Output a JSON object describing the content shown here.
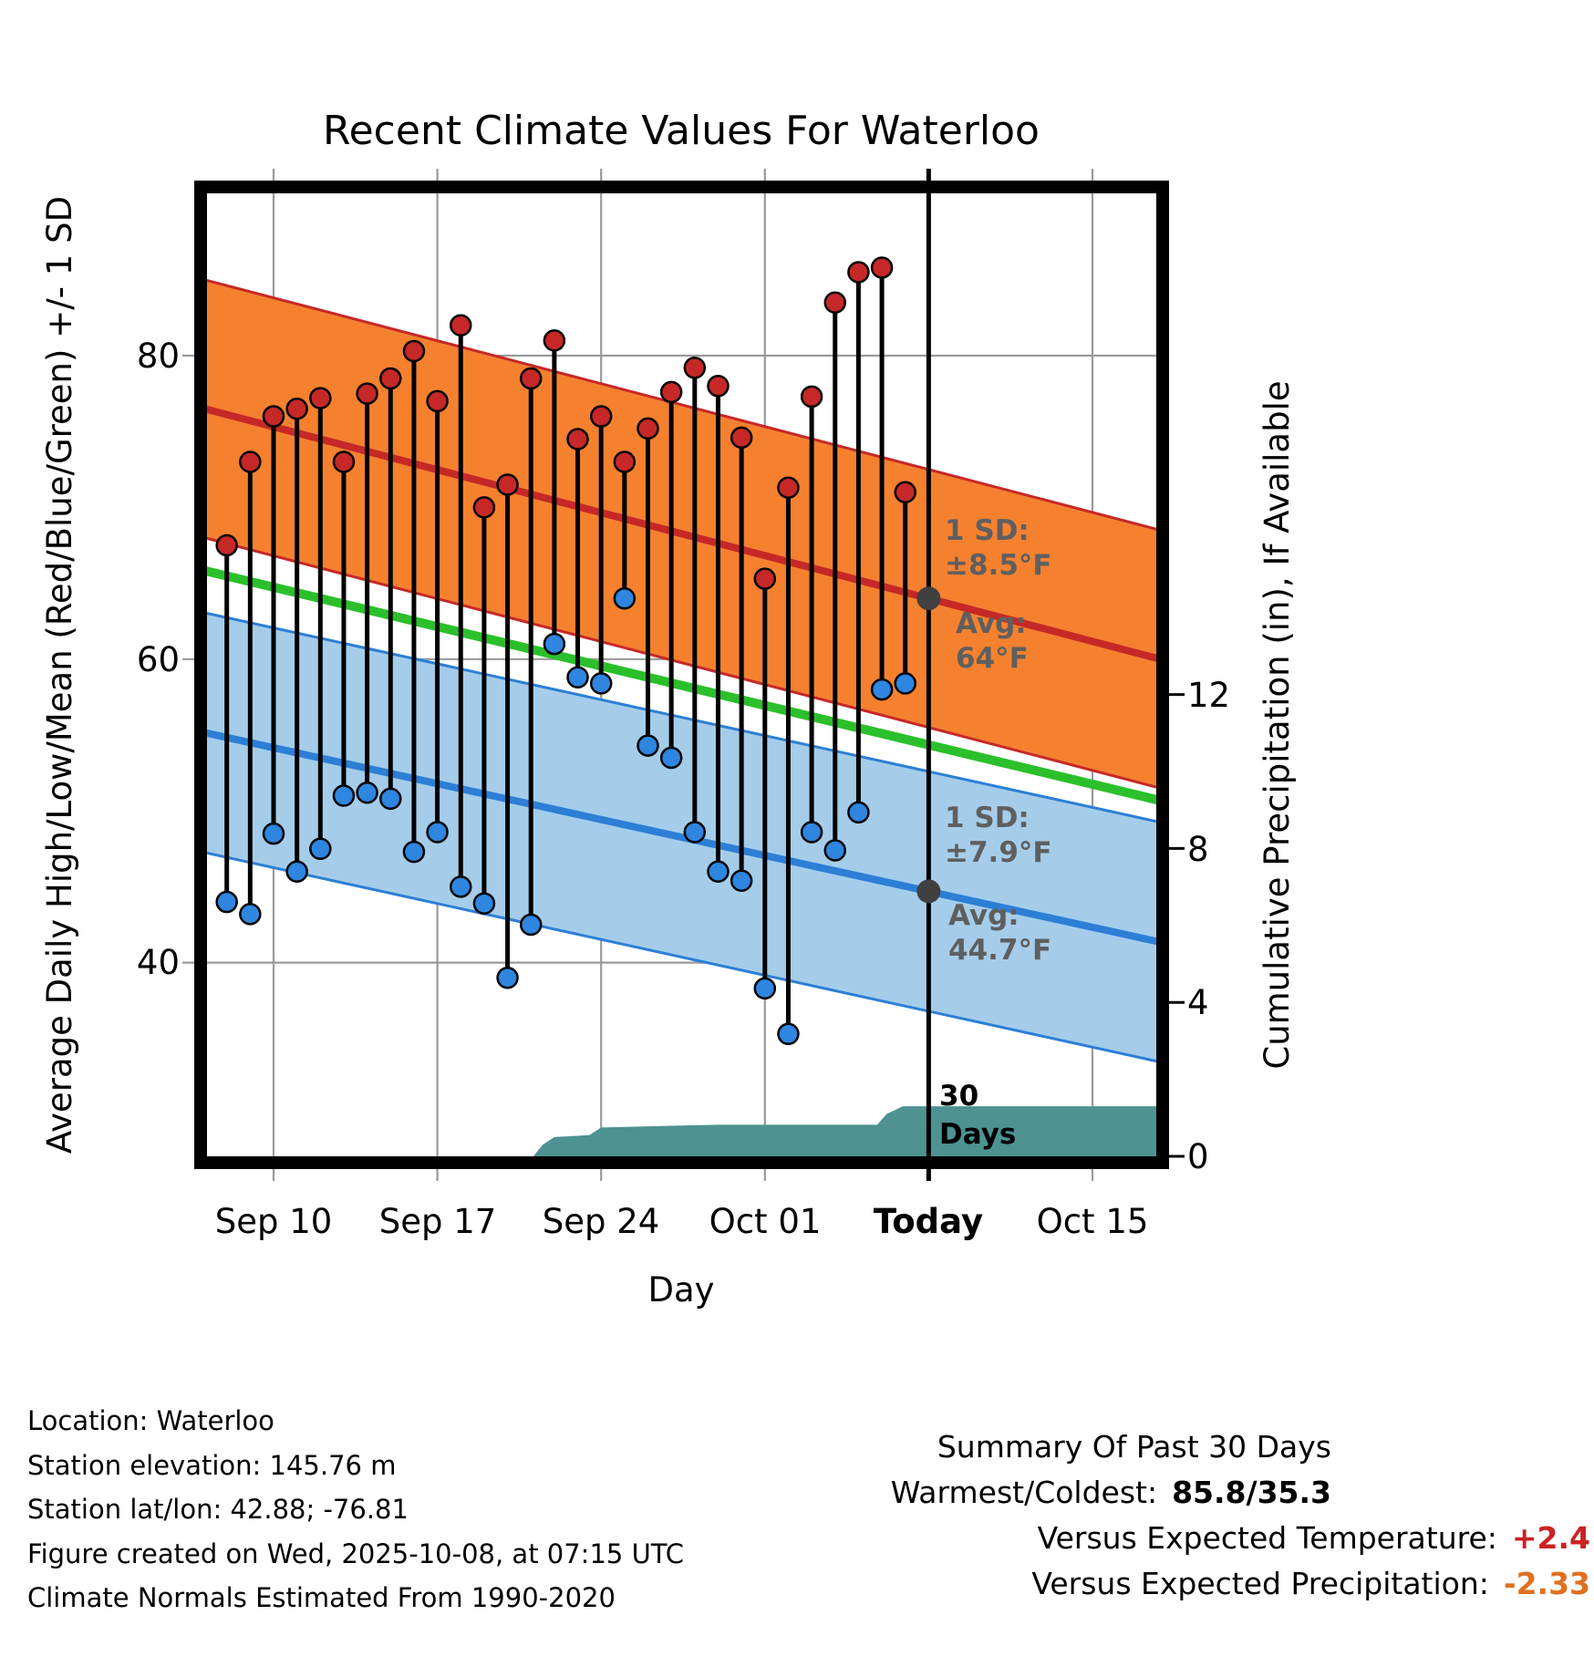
{
  "title": "Recent Climate Values For Waterloo",
  "axes": {
    "left_label": "Average Daily High/Low/Mean (Red/Blue/Green) +/- 1 SD",
    "right_label": "Cumulative Precipitation (in), If Available",
    "x_label": "Day",
    "x_ticks": [
      {
        "label": "Sep 10",
        "d": 0
      },
      {
        "label": "Sep 17",
        "d": 7
      },
      {
        "label": "Sep 24",
        "d": 14
      },
      {
        "label": "Oct 01",
        "d": 21
      },
      {
        "label": "Today",
        "d": 28,
        "bold": true
      },
      {
        "label": "Oct 15",
        "d": 35
      }
    ],
    "left_ticks": [
      {
        "label": "80",
        "t": 80
      },
      {
        "label": "60",
        "t": 60
      },
      {
        "label": "40",
        "t": 40
      }
    ],
    "right_ticks": [
      {
        "label": "12",
        "p": 12
      },
      {
        "label": "8",
        "p": 8
      },
      {
        "label": "4",
        "p": 4
      },
      {
        "label": "0",
        "p": 0
      }
    ]
  },
  "annotations": {
    "high_sd_title": "1 SD:",
    "high_sd_value": "±8.5°F",
    "high_avg_title": "Avg:",
    "high_avg_value": "64°F",
    "low_sd_title": "1 SD:",
    "low_sd_value": "±7.9°F",
    "low_avg_title": "Avg:",
    "low_avg_value": "44.7°F",
    "precip_days_line1": "30",
    "precip_days_line2": "Days"
  },
  "footer": {
    "left_lines": [
      "Location: Waterloo",
      "Station elevation: 145.76 m",
      "Station lat/lon: 42.88; -76.81",
      "Figure created on Wed, 2025-10-08, at 07:15 UTC",
      "Climate Normals Estimated From 1990-2020"
    ],
    "summary": {
      "title": "Summary Of Past 30 Days",
      "warmest_label": "Warmest/Coldest:",
      "warmest_value": "85.8/35.3",
      "vs_temp_label": "Versus Expected Temperature:",
      "vs_temp_value": "+2.4",
      "vs_precip_label": "Versus Expected Precipitation:",
      "vs_precip_value": "-2.33"
    }
  },
  "colors": {
    "high_band": "#F5812F",
    "high_line": "#C62828",
    "low_band": "#A5CDEA",
    "low_line": "#2C7FD6",
    "mean_line": "#2BC02B",
    "precip_fill": "#4E9292",
    "high_dot": "#C62828",
    "low_dot": "#2E86E0",
    "stem": "#000000",
    "grid": "#9A9A9A",
    "today_line": "#000000",
    "today_marker": "#404040",
    "annotation_gray": "#5F5F5F",
    "vs_temp_color": "#CC2222",
    "vs_precip_color": "#E07020"
  },
  "chart_data": {
    "type": "line",
    "title": "Recent Climate Values For Waterloo",
    "x_axis": {
      "unit": "days since Sep 10",
      "range": [
        -3.12,
        38.0
      ],
      "tick_days": [
        0,
        7,
        14,
        21,
        28,
        35
      ]
    },
    "temp_axis": {
      "label": "Average Daily High/Low/Mean (Red/Blue/Green) +/- 1 SD",
      "ticks": [
        40,
        60,
        80
      ],
      "range_f": [
        27,
        91
      ]
    },
    "precip_axis": {
      "label": "Cumulative Precipitation (in), If Available",
      "ticks": [
        0,
        4,
        8,
        12
      ],
      "range_in": [
        0,
        25.2
      ]
    },
    "normals": {
      "high": {
        "value_at_d0": 75.31,
        "slope_per_day": -0.404,
        "sd": 8.5,
        "today_value": 64.0
      },
      "low": {
        "value_at_d0": 54.16,
        "slope_per_day": -0.338,
        "sd": 7.9,
        "today_value": 44.7
      },
      "mean": {
        "value_at_d0": 64.74,
        "slope_per_day": -0.371
      }
    },
    "today_d": 28,
    "daily_high_low": [
      {
        "d": -2,
        "high": 67.5,
        "low": 44.0
      },
      {
        "d": -1,
        "high": 73.0,
        "low": 43.2
      },
      {
        "d": 0,
        "high": 76.0,
        "low": 48.5
      },
      {
        "d": 1,
        "high": 76.5,
        "low": 46.0
      },
      {
        "d": 2,
        "high": 77.2,
        "low": 47.5
      },
      {
        "d": 3,
        "high": 73.0,
        "low": 51.0
      },
      {
        "d": 4,
        "high": 77.5,
        "low": 51.2
      },
      {
        "d": 5,
        "high": 78.5,
        "low": 50.8
      },
      {
        "d": 6,
        "high": 80.3,
        "low": 47.3
      },
      {
        "d": 7,
        "high": 77.0,
        "low": 48.6
      },
      {
        "d": 8,
        "high": 82.0,
        "low": 45.0
      },
      {
        "d": 9,
        "high": 70.0,
        "low": 43.9
      },
      {
        "d": 10,
        "high": 71.5,
        "low": 39.0
      },
      {
        "d": 11,
        "high": 78.5,
        "low": 42.5
      },
      {
        "d": 12,
        "high": 81.0,
        "low": 61.0
      },
      {
        "d": 13,
        "high": 74.5,
        "low": 58.8
      },
      {
        "d": 14,
        "high": 76.0,
        "low": 58.4
      },
      {
        "d": 15,
        "high": 73.0,
        "low": 64.0
      },
      {
        "d": 16,
        "high": 75.2,
        "low": 54.3
      },
      {
        "d": 17,
        "high": 77.6,
        "low": 53.5
      },
      {
        "d": 18,
        "high": 79.2,
        "low": 48.6
      },
      {
        "d": 19,
        "high": 78.0,
        "low": 46.0
      },
      {
        "d": 20,
        "high": 74.6,
        "low": 45.4
      },
      {
        "d": 21,
        "high": 65.3,
        "low": 38.3
      },
      {
        "d": 22,
        "high": 71.3,
        "low": 35.3
      },
      {
        "d": 23,
        "high": 77.3,
        "low": 48.6
      },
      {
        "d": 24,
        "high": 83.5,
        "low": 47.4
      },
      {
        "d": 25,
        "high": 85.5,
        "low": 49.9
      },
      {
        "d": 26,
        "high": 85.8,
        "low": 58.0
      },
      {
        "d": 27,
        "high": 71.0,
        "low": 58.4
      }
    ],
    "cumulative_precip_in": [
      [
        11.1,
        0
      ],
      [
        11.5,
        0.3
      ],
      [
        12.0,
        0.5
      ],
      [
        13.5,
        0.55
      ],
      [
        14.0,
        0.75
      ],
      [
        16.0,
        0.78
      ],
      [
        19.0,
        0.82
      ],
      [
        25.8,
        0.82
      ],
      [
        26.2,
        1.1
      ],
      [
        26.9,
        1.3
      ],
      [
        38.0,
        1.3
      ]
    ],
    "summary_stats": {
      "warmest": 85.8,
      "coldest": 35.3,
      "vs_expected_temp": 2.4,
      "vs_expected_precip": -2.33
    }
  }
}
